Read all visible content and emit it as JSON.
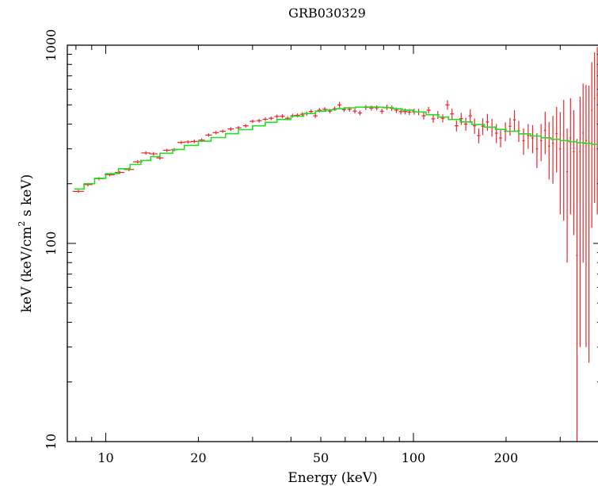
{
  "chart_data": {
    "type": "scatter",
    "title": "GRB030329",
    "xlabel": "Energy (keV)",
    "ylabel": "keV (keV/cm² s keV)",
    "ylabel_parts": {
      "before": "keV (keV/cm",
      "superscript": "2",
      "after": " s keV)"
    },
    "xscale": "log",
    "yscale": "log",
    "xlim": [
      7.5,
      410
    ],
    "ylim": [
      10,
      1000
    ],
    "x_tick_labels": [
      "10",
      "20",
      "50",
      "100",
      "200"
    ],
    "y_tick_labels": [
      "10",
      "100",
      "1000"
    ],
    "grid": false,
    "legend": "none",
    "colors": {
      "data": "#e8262a",
      "model": "#22dd22",
      "axes": "#000000"
    },
    "series": [
      {
        "role": "data",
        "points": [
          [
            8.15,
            183,
            0.35,
            3
          ],
          [
            8.75,
            198,
            0.3,
            4
          ],
          [
            9.5,
            212,
            0.35,
            4
          ],
          [
            10.3,
            222,
            0.4,
            4
          ],
          [
            11.1,
            228,
            0.4,
            4
          ],
          [
            11.9,
            236,
            0.45,
            5
          ],
          [
            12.7,
            258,
            0.45,
            5
          ],
          [
            13.5,
            286,
            0.45,
            6
          ],
          [
            14.3,
            283,
            0.45,
            6
          ],
          [
            15.0,
            270,
            0.4,
            6
          ],
          [
            15.8,
            295,
            0.45,
            6
          ],
          [
            16.7,
            297,
            0.45,
            6
          ],
          [
            17.6,
            323,
            0.5,
            6
          ],
          [
            18.5,
            325,
            0.5,
            6
          ],
          [
            19.4,
            327,
            0.5,
            7
          ],
          [
            20.5,
            332,
            0.5,
            7
          ],
          [
            21.6,
            352,
            0.55,
            7
          ],
          [
            22.8,
            362,
            0.55,
            7
          ],
          [
            24.0,
            368,
            0.55,
            7
          ],
          [
            25.5,
            378,
            0.6,
            8
          ],
          [
            27.0,
            383,
            0.6,
            8
          ],
          [
            28.5,
            392,
            0.6,
            8
          ],
          [
            30.0,
            413,
            0.65,
            8
          ],
          [
            31.5,
            416,
            0.65,
            9
          ],
          [
            33.0,
            423,
            0.65,
            9
          ],
          [
            34.5,
            428,
            0.65,
            9
          ],
          [
            36.0,
            437,
            0.7,
            10
          ],
          [
            37.5,
            438,
            0.7,
            10
          ],
          [
            39.0,
            428,
            0.7,
            10
          ],
          [
            40.5,
            441,
            0.7,
            10
          ],
          [
            42.0,
            443,
            0.75,
            10
          ],
          [
            43.5,
            448,
            0.75,
            11
          ],
          [
            45.0,
            451,
            0.75,
            11
          ],
          [
            46.5,
            463,
            0.8,
            11
          ],
          [
            48.0,
            440,
            0.8,
            11
          ],
          [
            49.5,
            470,
            0.8,
            12
          ],
          [
            51.5,
            475,
            0.9,
            12
          ],
          [
            53.5,
            465,
            0.9,
            12
          ],
          [
            55.5,
            478,
            0.9,
            12
          ],
          [
            57.5,
            500,
            0.9,
            18
          ],
          [
            59.5,
            473,
            0.9,
            13
          ],
          [
            62.0,
            475,
            1.0,
            13
          ],
          [
            64.5,
            465,
            1.0,
            13
          ],
          [
            67.0,
            455,
            1.0,
            13
          ],
          [
            70.0,
            485,
            1.2,
            14
          ],
          [
            73.0,
            482,
            1.2,
            14
          ],
          [
            76.0,
            483,
            1.2,
            14
          ],
          [
            79.0,
            464,
            1.2,
            14
          ],
          [
            82.0,
            486,
            1.3,
            15
          ],
          [
            85.0,
            481,
            1.3,
            15
          ],
          [
            88.0,
            470,
            1.4,
            15
          ],
          [
            91.0,
            462,
            1.4,
            15
          ],
          [
            94.0,
            463,
            1.5,
            16
          ],
          [
            97.0,
            460,
            1.5,
            16
          ],
          [
            100.5,
            462,
            1.6,
            16
          ],
          [
            104.0,
            460,
            1.6,
            17
          ],
          [
            108.0,
            440,
            1.6,
            18
          ],
          [
            112.0,
            470,
            1.7,
            18
          ],
          [
            116.0,
            425,
            1.7,
            19
          ],
          [
            120.0,
            445,
            1.8,
            20
          ],
          [
            124.5,
            428,
            1.8,
            20
          ],
          [
            129.0,
            500,
            2.0,
            28
          ],
          [
            133.5,
            450,
            2.0,
            28
          ],
          [
            138.0,
            392,
            2.0,
            25
          ],
          [
            143.0,
            426,
            2.0,
            30
          ],
          [
            148.0,
            400,
            2.0,
            30
          ],
          [
            153.0,
            440,
            2.0,
            35
          ],
          [
            158.0,
            392,
            2.0,
            35
          ],
          [
            163.0,
            350,
            2.0,
            30
          ],
          [
            168.0,
            390,
            2.0,
            38
          ],
          [
            174.0,
            410,
            2.0,
            40
          ],
          [
            180.0,
            385,
            2.0,
            40
          ],
          [
            186.0,
            360,
            2.0,
            40
          ],
          [
            192.0,
            340,
            2.0,
            35
          ],
          [
            199.0,
            368,
            2.0,
            40
          ],
          [
            206.0,
            390,
            2.0,
            40
          ],
          [
            213.0,
            420,
            2.0,
            50
          ],
          [
            220.0,
            370,
            2.0,
            45
          ],
          [
            228.0,
            330,
            2.0,
            50
          ],
          [
            236.0,
            350,
            2.0,
            50
          ],
          [
            244.0,
            340,
            2.0,
            55
          ],
          [
            252.0,
            300,
            2.0,
            60
          ],
          [
            260.0,
            330,
            2.0,
            70
          ],
          [
            268.0,
            372,
            2.0,
            90
          ],
          [
            276.0,
            310,
            2.0,
            100
          ],
          [
            284.0,
            320,
            2.0,
            120
          ],
          [
            292.0,
            358,
            2.0,
            130
          ],
          [
            300.0,
            300,
            2.0,
            160
          ],
          [
            308.0,
            330,
            2.0,
            200
          ],
          [
            316.0,
            230,
            2.0,
            150
          ],
          [
            324.0,
            340,
            2.0,
            200
          ],
          [
            332.0,
            290,
            2.0,
            180
          ],
          [
            340.0,
            87,
            2.0,
            250
          ],
          [
            348.0,
            290,
            2.0,
            260
          ],
          [
            356.0,
            360,
            2.0,
            280
          ],
          [
            364.0,
            330,
            2.0,
            300
          ],
          [
            372.0,
            325,
            2.0,
            300
          ],
          [
            380.0,
            470,
            2.0,
            350
          ],
          [
            388.0,
            540,
            2.0,
            380
          ],
          [
            396.0,
            560,
            2.0,
            420
          ]
        ]
      },
      {
        "role": "model",
        "x": [
          7.9,
          8.5,
          9.2,
          10.0,
          11.0,
          12.0,
          13.0,
          14.0,
          15.0,
          16.5,
          18.0,
          20.0,
          22.0,
          24.5,
          27.0,
          30.0,
          33.0,
          36.0,
          40.0,
          44.0,
          48.0,
          52.0,
          56.0,
          60.0,
          65.0,
          70.0,
          75.0,
          80.0,
          86.0,
          92.0,
          100.0,
          110.0,
          120.0,
          130.0,
          142.0,
          155.0,
          170.0,
          185.0,
          200.0,
          220.0,
          240.0,
          260.0,
          280.0,
          300.0,
          320.0,
          340.0,
          360.0,
          380.0,
          400.0
        ],
        "y": [
          188,
          200,
          213,
          225,
          238,
          250,
          262,
          274,
          285,
          298,
          312,
          328,
          342,
          358,
          375,
          392,
          408,
          422,
          438,
          452,
          465,
          472,
          478,
          483,
          487,
          488,
          487,
          484,
          478,
          470,
          460,
          446,
          434,
          422,
          410,
          398,
          386,
          376,
          368,
          357,
          348,
          341,
          335,
          330,
          326,
          322,
          319,
          316,
          313
        ]
      }
    ]
  }
}
